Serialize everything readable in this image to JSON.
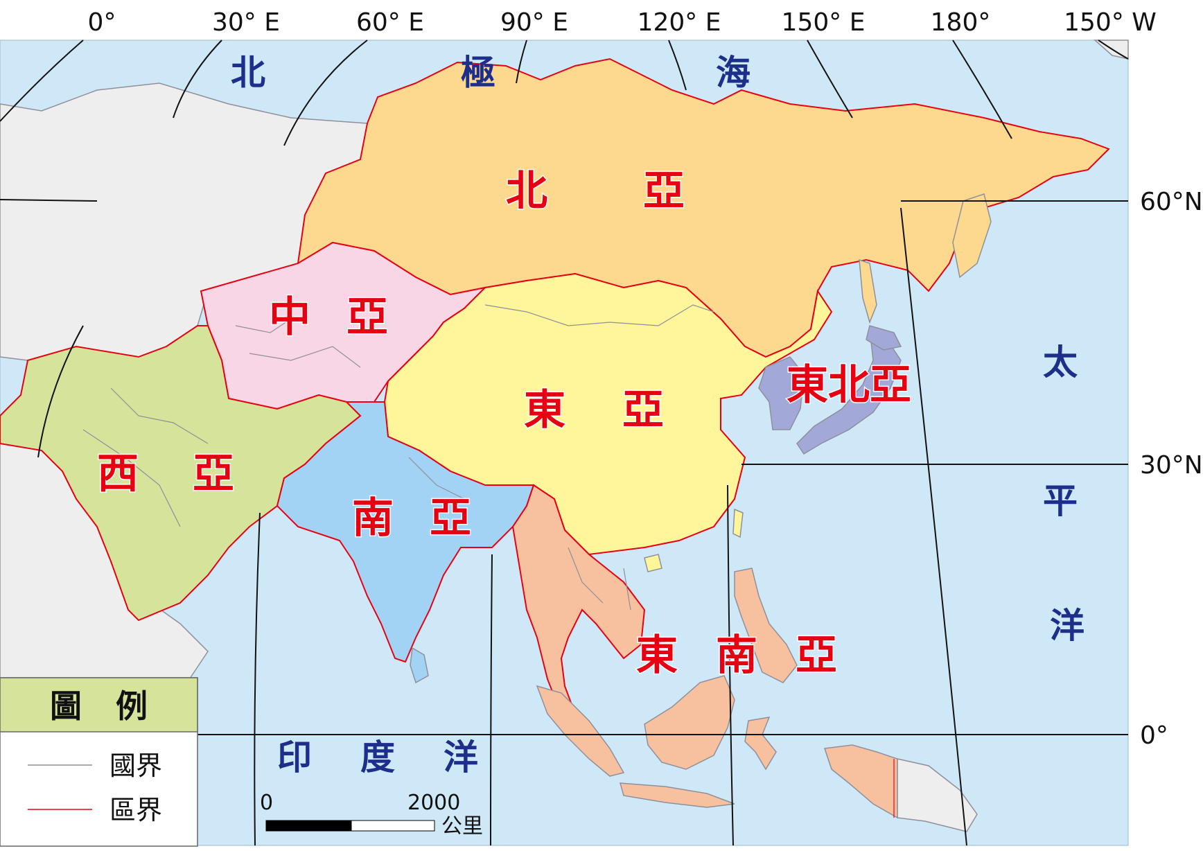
{
  "map": {
    "colors": {
      "ocean": "#cfe8f8",
      "non_asia_land": "#eeeeee",
      "north_asia": "#fcd98f",
      "central_asia": "#f8d6e6",
      "east_asia": "#fff59a",
      "northeast_asia": "#a2a8d8",
      "west_asia": "#d5e39b",
      "south_asia": "#a2d3f5",
      "southeast_asia": "#f7c1a0",
      "country_border": "#8f8f9a",
      "region_border": "#e60012",
      "graticule": "#111111"
    },
    "longitude_labels": [
      "0°",
      "30° E",
      "60° E",
      "90° E",
      "120° E",
      "150° E",
      "180°",
      "150° W"
    ],
    "latitude_labels": [
      "60°N",
      "30°N",
      "0°"
    ],
    "oceans": {
      "arctic": [
        "北",
        "極",
        "海"
      ],
      "pacific": [
        "太",
        "平",
        "洋"
      ],
      "indian": [
        "印",
        "度",
        "洋"
      ]
    },
    "regions": {
      "north_asia": [
        "北",
        "亞"
      ],
      "central_asia": [
        "中",
        "亞"
      ],
      "east_asia": [
        "東",
        "亞"
      ],
      "northeast_asia": "東北亞",
      "west_asia": [
        "西",
        "亞"
      ],
      "south_asia": [
        "南",
        "亞"
      ],
      "southeast_asia": [
        "東",
        "南",
        "亞"
      ]
    }
  },
  "legend": {
    "title": [
      "圖",
      "例"
    ],
    "country_border_label": "國界",
    "region_border_label": "區界",
    "header_color": "#d5e39b"
  },
  "scale_bar": {
    "start": "0",
    "end": "2000",
    "unit": "公里"
  }
}
